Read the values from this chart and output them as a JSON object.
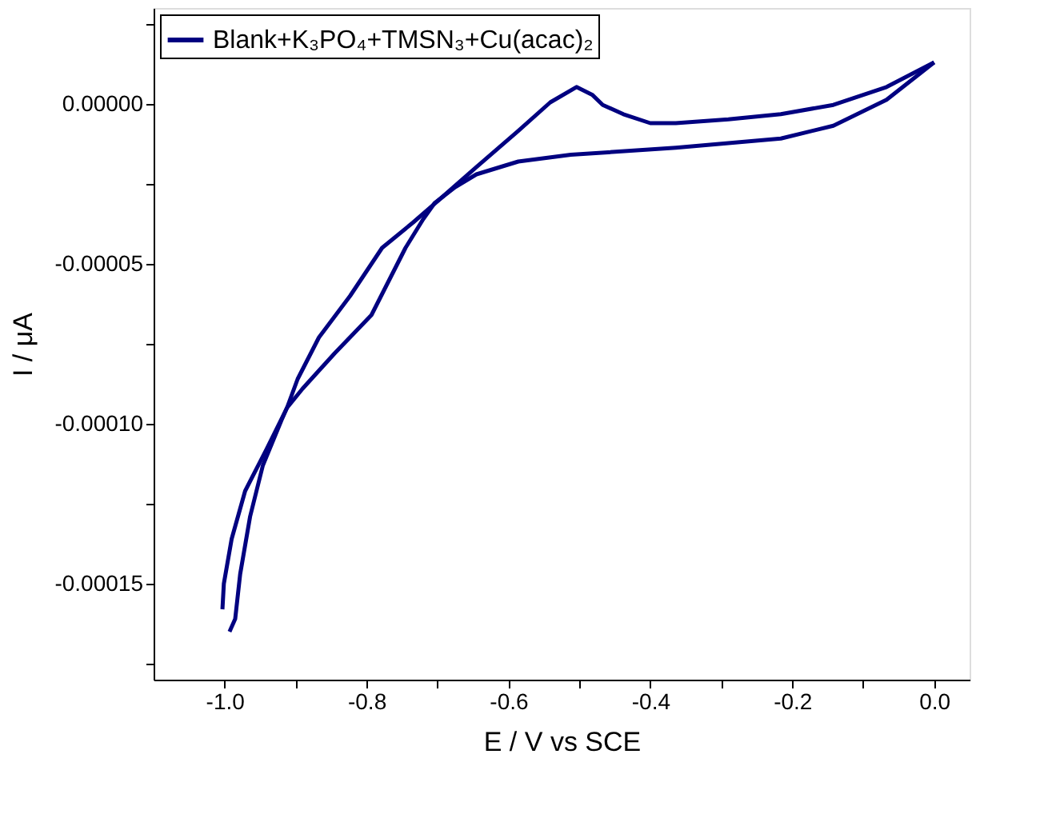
{
  "chart_data": {
    "type": "line",
    "xlabel": "E / V vs SCE",
    "ylabel": "I / μA",
    "xlim": [
      -1.1,
      0.05
    ],
    "ylim": [
      -0.00018,
      3e-05
    ],
    "xticks": [
      {
        "value": -1.0,
        "label": "-1.0"
      },
      {
        "value": -0.9,
        "label": null
      },
      {
        "value": -0.8,
        "label": "-0.8"
      },
      {
        "value": -0.7,
        "label": null
      },
      {
        "value": -0.6,
        "label": "-0.6"
      },
      {
        "value": -0.5,
        "label": null
      },
      {
        "value": -0.4,
        "label": "-0.4"
      },
      {
        "value": -0.3,
        "label": null
      },
      {
        "value": -0.2,
        "label": "-0.2"
      },
      {
        "value": -0.1,
        "label": null
      },
      {
        "value": 0.0,
        "label": "0.0"
      }
    ],
    "yticks": [
      {
        "value": 2.5e-05,
        "label": null
      },
      {
        "value": 0.0,
        "label": "0.00000"
      },
      {
        "value": -2.5e-05,
        "label": null
      },
      {
        "value": -5e-05,
        "label": "-0.00005"
      },
      {
        "value": -7.5e-05,
        "label": null
      },
      {
        "value": -0.0001,
        "label": "-0.00010"
      },
      {
        "value": -0.000125,
        "label": null
      },
      {
        "value": -0.00015,
        "label": "-0.00015"
      },
      {
        "value": -0.000175,
        "label": null
      }
    ],
    "grid": false,
    "legend": "top left",
    "series": [
      {
        "name": "Blank+K₃PO₄+TMSN₃+Cu(acac)₂",
        "color": "#000080",
        "x": [
          0.0,
          -0.067,
          -0.142,
          -0.216,
          -0.364,
          -0.512,
          -0.586,
          -0.645,
          -0.675,
          -0.704,
          -0.72,
          -0.745,
          -0.793,
          -0.845,
          -0.89,
          -0.912,
          -0.941,
          -0.971,
          -0.99,
          -1.001,
          -1.003
        ],
        "values": [
          1.3e-05,
          1.3e-06,
          -6.8e-06,
          -1.08e-05,
          -1.37e-05,
          -1.59e-05,
          -1.8e-05,
          -2.2e-05,
          -2.6e-05,
          -3.1e-05,
          -3.6e-05,
          -4.5e-05,
          -6.6e-05,
          -7.8e-05,
          -8.9e-05,
          -9.5e-05,
          -0.000108,
          -0.000121,
          -0.000136,
          -0.00015,
          -0.000158
        ]
      },
      {
        "color": "#000080",
        "x": [
          -0.993,
          -0.985,
          -0.978,
          -0.964,
          -0.946,
          -0.92,
          -0.912,
          -0.897,
          -0.867,
          -0.823,
          -0.778,
          -0.734,
          -0.69,
          -0.645,
          -0.586,
          -0.541,
          -0.504,
          -0.482,
          -0.467,
          -0.438,
          -0.4,
          -0.364,
          -0.29,
          -0.216,
          -0.142,
          -0.067,
          0.0
        ],
        "values": [
          -0.000165,
          -0.000161,
          -0.000147,
          -0.000129,
          -0.000113,
          -9.9e-05,
          -9.5e-05,
          -8.6e-05,
          -7.3e-05,
          -6e-05,
          -4.5e-05,
          -3.7e-05,
          -2.85e-05,
          -1.97e-05,
          -8.4e-06,
          5e-07,
          5.3e-06,
          2.9e-06,
          -3e-07,
          -3.2e-06,
          -6e-06,
          -6e-06,
          -4.8e-06,
          -3.2e-06,
          -3e-07,
          5.3e-06,
          1.3e-05
        ]
      }
    ]
  }
}
